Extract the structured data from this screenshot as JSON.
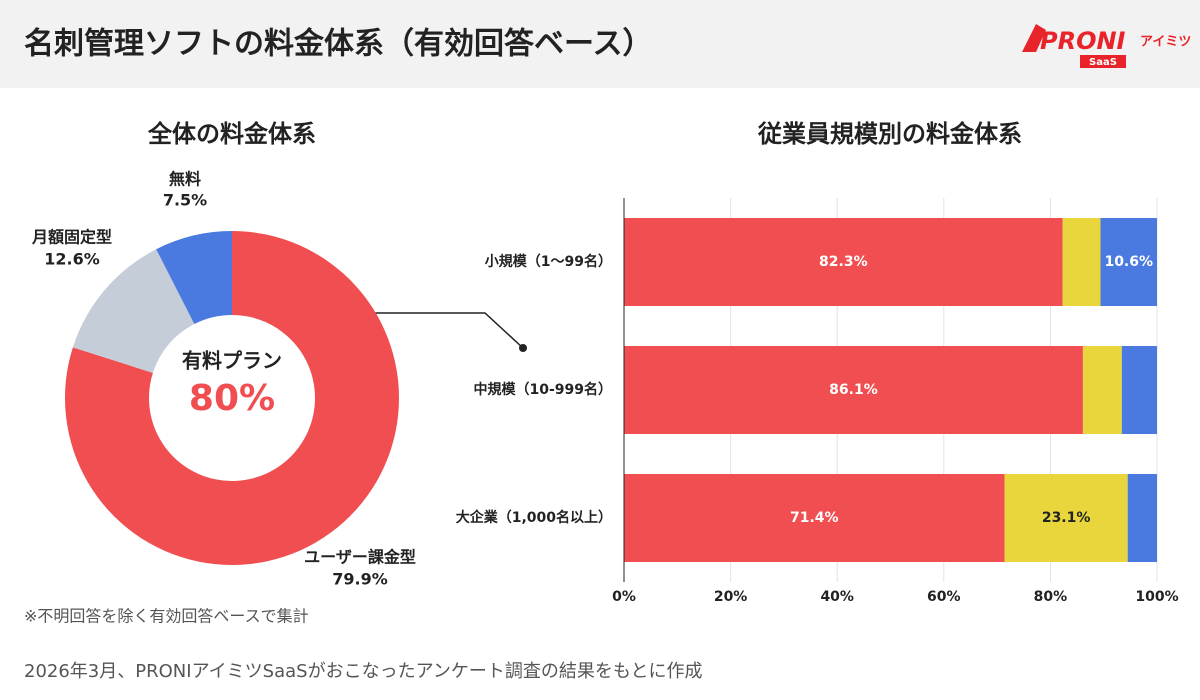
{
  "header": {
    "title": "名刺管理ソフトの料金体系（有効回答ベース）",
    "logo": "PRONI",
    "logo_sub": "アイミツ",
    "logo_tag": "SaaS"
  },
  "chart_data": [
    {
      "type": "donut",
      "title": "全体の料金体系",
      "categories": [
        "ユーザー課金型",
        "月額固定型",
        "無料"
      ],
      "values": [
        79.9,
        12.6,
        7.5
      ],
      "value_labels": [
        "79.9%",
        "12.6%",
        "7.5%"
      ],
      "colors": [
        "#f04e50",
        "#c5ced8",
        "#4a7ae0"
      ],
      "annotations": [
        {
          "text": "有料プラン"
        },
        {
          "text": "80%"
        }
      ]
    },
    {
      "type": "stacked-barh",
      "title": "従業員規模別の料金体系",
      "categories": [
        "小規模（1〜99名）",
        "中規模（10-999名）",
        "大企業（1,000名以上）"
      ],
      "series": [
        {
          "color": "#f04e50",
          "values": [
            82.3,
            86.1,
            71.4
          ],
          "value_labels": [
            "82.3%",
            "86.1%",
            "71.4%"
          ]
        },
        {
          "color": "#e8d63c",
          "values": [
            7.1,
            7.3,
            23.1
          ],
          "value_labels": [
            null,
            null,
            "23.1%"
          ]
        },
        {
          "color": "#4a7ae0",
          "values": [
            10.6,
            6.6,
            5.5
          ],
          "value_labels": [
            "10.6%",
            null,
            null
          ]
        }
      ],
      "xlim": [
        0,
        100
      ],
      "xticks": [
        {
          "value": 0,
          "label": "0%"
        },
        {
          "value": 20,
          "label": "20%"
        },
        {
          "value": 40,
          "label": "40%"
        },
        {
          "value": 60,
          "label": "60%"
        },
        {
          "value": 80,
          "label": "80%"
        },
        {
          "value": 100,
          "label": "100%"
        }
      ],
      "grid": true
    }
  ],
  "footnote": "※不明回答を除く有効回答ベースで集計",
  "source": "2026年3月、PRONIアイミツSaaSがおこなったアンケート調査の結果をもとに作成"
}
